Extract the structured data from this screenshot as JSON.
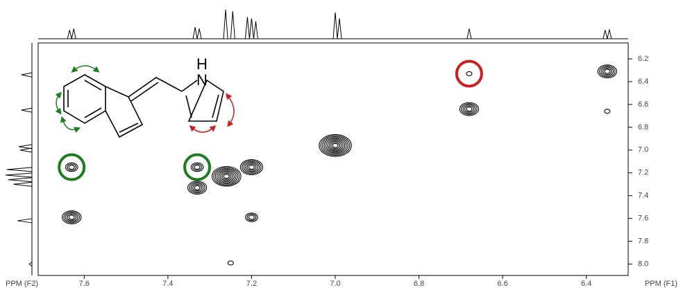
{
  "chart_data": {
    "type": "contour",
    "xlabel": "PPM (F2)",
    "ylabel": "PPM (F1)",
    "xlim": [
      7.71,
      6.3
    ],
    "ylim": [
      6.06,
      8.1
    ],
    "xticks": [
      7.6,
      7.4,
      7.2,
      {
        "value": 7,
        "label": "7.0"
      },
      6.8,
      6.6,
      6.4
    ],
    "yticks": [
      6.2,
      6.4,
      6.6,
      6.8,
      {
        "value": 7,
        "label": "7.0"
      },
      7.2,
      7.4,
      7.6,
      7.8,
      {
        "value": 8,
        "label": "8.0"
      }
    ],
    "color": "#000000",
    "peaks": {
      "x": [
        7.63,
        7.63,
        7.33,
        7.33,
        7.26,
        7.2,
        7.2,
        7.25,
        7.0,
        6.68,
        6.68,
        6.35,
        6.35
      ],
      "y": [
        7.59,
        7.15,
        7.15,
        7.33,
        7.23,
        7.15,
        7.59,
        7.99,
        6.96,
        6.33,
        6.64,
        6.31,
        6.66
      ],
      "levels": [
        5,
        3,
        3,
        5,
        8,
        6,
        3,
        1,
        9,
        1,
        5,
        5,
        1
      ]
    },
    "circles": {
      "x": [
        7.63,
        7.33,
        6.68
      ],
      "y": [
        7.15,
        7.15,
        6.33
      ],
      "colors": [
        "#1e7b1e",
        "#1e7b1e",
        "#cc1f1f"
      ]
    },
    "projection_f2": {
      "x": [
        7.635,
        7.625,
        7.335,
        7.325,
        7.262,
        7.245,
        7.21,
        7.2,
        7.19,
        7.0,
        6.99,
        6.68,
        6.355,
        6.345
      ],
      "intensity": [
        30,
        35,
        40,
        35,
        100,
        95,
        75,
        70,
        60,
        90,
        70,
        35,
        30,
        32
      ]
    },
    "projection_f1": {
      "y": [
        6.34,
        6.65,
        6.97,
        7.0,
        7.17,
        7.22,
        7.26,
        7.3,
        7.62,
        8.0
      ],
      "intensity": [
        40,
        40,
        50,
        45,
        95,
        100,
        90,
        70,
        55,
        10
      ]
    }
  },
  "molecule": {
    "atoms": [
      "H",
      "N"
    ]
  }
}
